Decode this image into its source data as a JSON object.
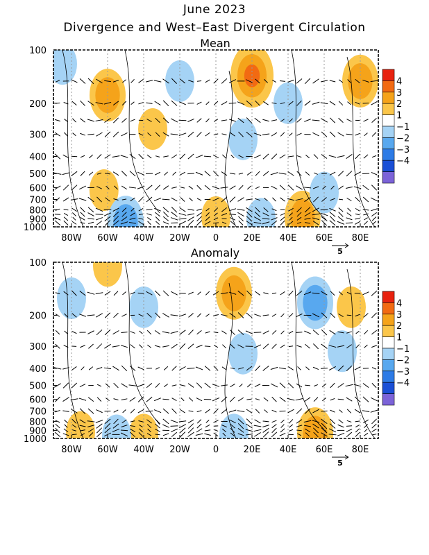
{
  "header": {
    "title_line1": "June 2023",
    "title_line2": "Divergence and West–East Divergent Circulation"
  },
  "colorbar": {
    "labels": [
      "4",
      "3",
      "2",
      "1",
      "−1",
      "−2",
      "−3",
      "−4"
    ],
    "colors": [
      "#e8220f",
      "#f26a12",
      "#f5a31a",
      "#fbc64a",
      "#ffffff",
      "#a5d3f5",
      "#58a8ef",
      "#2d7be6",
      "#1a4fd6",
      "#7c63d8"
    ]
  },
  "reference_vector": {
    "label": "5"
  },
  "chart_data": [
    {
      "type": "contour",
      "title": "Mean",
      "x_ticks": [
        "80W",
        "60W",
        "40W",
        "20W",
        "0",
        "20E",
        "40E",
        "60E",
        "80E"
      ],
      "y_ticks": [
        "100",
        "200",
        "300",
        "400",
        "500",
        "600",
        "700",
        "800",
        "900",
        "1000"
      ],
      "xlim": [
        -90,
        90
      ],
      "ylim": [
        1000,
        100
      ],
      "y_scale": "log",
      "grid": true,
      "positive_blobs": [
        {
          "lon": -60,
          "p": 180,
          "level": 2
        },
        {
          "lon": 20,
          "p": 140,
          "level": 3
        },
        {
          "lon": 80,
          "p": 150,
          "level": 2
        },
        {
          "lon": -35,
          "p": 280,
          "level": 1
        },
        {
          "lon": -62,
          "p": 620,
          "level": 1
        },
        {
          "lon": 0,
          "p": 880,
          "level": 1
        },
        {
          "lon": 48,
          "p": 880,
          "level": 2
        }
      ],
      "negative_blobs": [
        {
          "lon": -85,
          "p": 120,
          "level": -1
        },
        {
          "lon": -20,
          "p": 150,
          "level": -1
        },
        {
          "lon": 40,
          "p": 200,
          "level": -1
        },
        {
          "lon": 15,
          "p": 320,
          "level": -1
        },
        {
          "lon": 60,
          "p": 640,
          "level": -1
        },
        {
          "lon": -50,
          "p": 940,
          "level": -2
        },
        {
          "lon": 25,
          "p": 900,
          "level": -1
        }
      ]
    },
    {
      "type": "contour",
      "title": "Anomaly",
      "x_ticks": [
        "80W",
        "60W",
        "40W",
        "20W",
        "0",
        "20E",
        "40E",
        "60E",
        "80E"
      ],
      "y_ticks": [
        "100",
        "200",
        "300",
        "400",
        "500",
        "600",
        "700",
        "800",
        "900",
        "1000"
      ],
      "xlim": [
        -90,
        90
      ],
      "ylim": [
        1000,
        100
      ],
      "y_scale": "log",
      "grid": true,
      "positive_blobs": [
        {
          "lon": -60,
          "p": 105,
          "level": 1
        },
        {
          "lon": 10,
          "p": 150,
          "level": 2
        },
        {
          "lon": 75,
          "p": 180,
          "level": 1
        },
        {
          "lon": -75,
          "p": 920,
          "level": 1
        },
        {
          "lon": -40,
          "p": 950,
          "level": 1
        },
        {
          "lon": 55,
          "p": 940,
          "level": 2
        }
      ],
      "negative_blobs": [
        {
          "lon": -80,
          "p": 160,
          "level": -1
        },
        {
          "lon": -40,
          "p": 180,
          "level": -1
        },
        {
          "lon": 55,
          "p": 170,
          "level": -2
        },
        {
          "lon": 15,
          "p": 330,
          "level": -1
        },
        {
          "lon": 70,
          "p": 320,
          "level": -1
        },
        {
          "lon": 10,
          "p": 950,
          "level": -1
        },
        {
          "lon": -55,
          "p": 960,
          "level": -1
        }
      ]
    }
  ]
}
